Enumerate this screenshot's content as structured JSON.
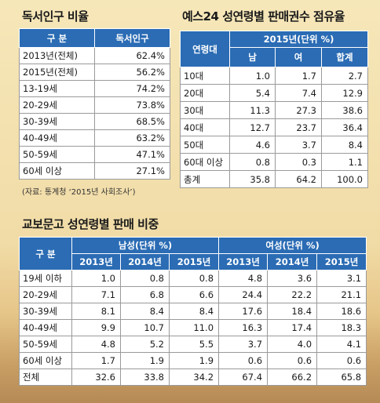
{
  "table1": {
    "title": "독서인구 비율",
    "headers": [
      "구  분",
      "독서인구"
    ],
    "rows": [
      [
        "2013년(전체)",
        "62.4%"
      ],
      [
        "2015년(전체)",
        "56.2%"
      ],
      [
        "13-19세",
        "74.2%"
      ],
      [
        "20-29세",
        "73.8%"
      ],
      [
        "30-39세",
        "68.5%"
      ],
      [
        "40-49세",
        "63.2%"
      ],
      [
        "50-59세",
        "47.1%"
      ],
      [
        "60세 이상",
        "27.1%"
      ]
    ],
    "source": "(자료: 통계청 ‘2015년 사회조사’)"
  },
  "table2": {
    "title": "예스24 성연령별 판매권수 점유율",
    "header_group": "2015년(단위 %)",
    "header_age": "연령대",
    "sub_headers": [
      "남",
      "여",
      "합계"
    ],
    "rows": [
      [
        "10대",
        "1.0",
        "1.7",
        "2.7"
      ],
      [
        "20대",
        "5.4",
        "7.4",
        "12.9"
      ],
      [
        "30대",
        "11.3",
        "27.3",
        "38.6"
      ],
      [
        "40대",
        "12.7",
        "23.7",
        "36.4"
      ],
      [
        "50대",
        "4.6",
        "3.7",
        "8.4"
      ],
      [
        "60대 이상",
        "0.8",
        "0.3",
        "1.1"
      ],
      [
        "총계",
        "35.8",
        "64.2",
        "100.0"
      ]
    ]
  },
  "table3": {
    "title": "교보문고 성연령별 판매 비중",
    "header_label": "구  분",
    "group_male": "남성(단위 %)",
    "group_female": "여성(단위 %)",
    "years": [
      "2013년",
      "2014년",
      "2015년",
      "2013년",
      "2014년",
      "2015년"
    ],
    "rows": [
      [
        "19세 이하",
        "1.0",
        "0.8",
        "0.8",
        "4.8",
        "3.6",
        "3.1"
      ],
      [
        "20-29세",
        "7.1",
        "6.8",
        "6.6",
        "24.4",
        "22.2",
        "21.1"
      ],
      [
        "30-39세",
        "8.1",
        "8.4",
        "8.4",
        "17.6",
        "18.4",
        "18.6"
      ],
      [
        "40-49세",
        "9.9",
        "10.7",
        "11.0",
        "16.3",
        "17.4",
        "18.3"
      ],
      [
        "50-59세",
        "4.8",
        "5.2",
        "5.5",
        "3.7",
        "4.0",
        "4.1"
      ],
      [
        "60세 이상",
        "1.7",
        "1.9",
        "1.9",
        "0.6",
        "0.6",
        "0.6"
      ],
      [
        "전체",
        "32.6",
        "33.8",
        "34.2",
        "67.4",
        "66.2",
        "65.8"
      ]
    ]
  }
}
